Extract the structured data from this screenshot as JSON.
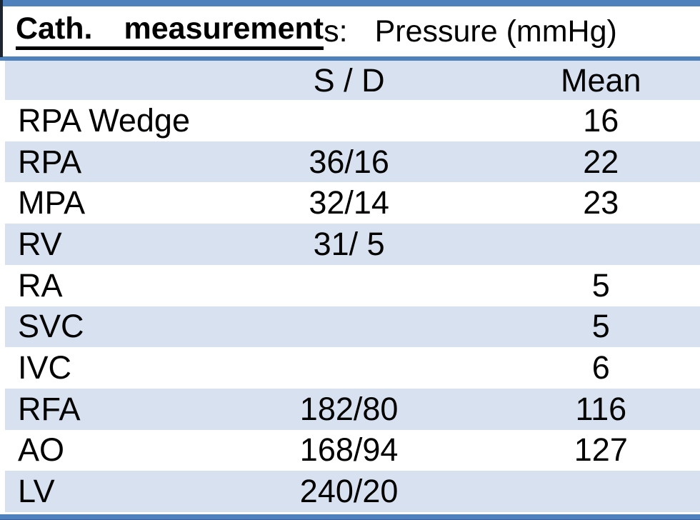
{
  "title": {
    "word1": "Cath.",
    "word2": "measurement",
    "suffix": "s:",
    "subtitle": "Pressure (mmHg)"
  },
  "table": {
    "col_sd": "S / D",
    "col_mean": "Mean",
    "rows": [
      {
        "label": "RPA Wedge",
        "sd": "",
        "mean": "16"
      },
      {
        "label": "RPA",
        "sd": "36/16",
        "mean": "22"
      },
      {
        "label": "MPA",
        "sd": "32/14",
        "mean": "23"
      },
      {
        "label": "RV",
        "sd": "31/ 5",
        "mean": ""
      },
      {
        "label": "RA",
        "sd": "",
        "mean": "5"
      },
      {
        "label": "SVC",
        "sd": "",
        "mean": "5"
      },
      {
        "label": "IVC",
        "sd": "",
        "mean": "6"
      },
      {
        "label": "RFA",
        "sd": "182/80",
        "mean": "116"
      },
      {
        "label": "AO",
        "sd": "168/94",
        "mean": "127"
      },
      {
        "label": "LV",
        "sd": "240/20",
        "mean": ""
      }
    ]
  },
  "colors": {
    "accent_blue": "#4f81bd",
    "row_light_blue": "#d7e1f0",
    "dark_edge": "#1c2530",
    "text": "#000000"
  }
}
